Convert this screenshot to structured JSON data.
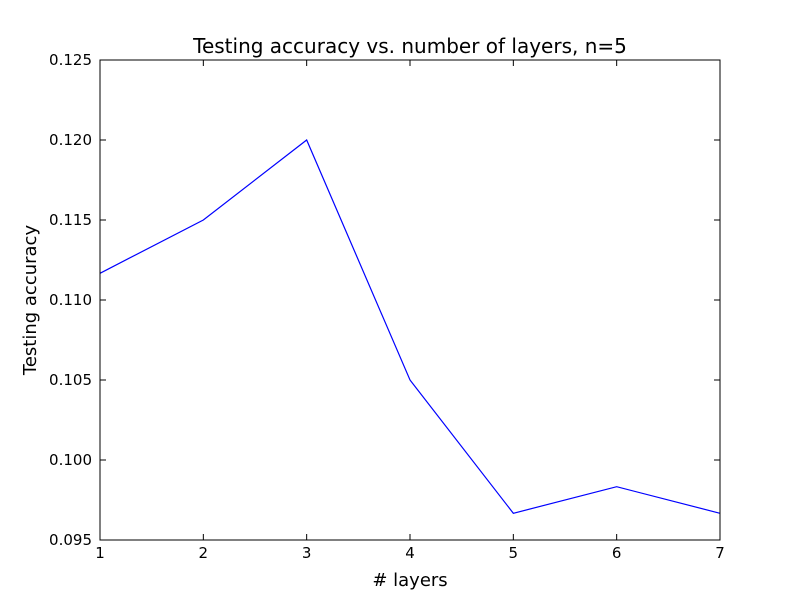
{
  "chart_data": {
    "type": "line",
    "title": "Testing accuracy vs. number of layers, n=5",
    "xlabel": "# layers",
    "ylabel": "Testing accuracy",
    "xlim": [
      1,
      7
    ],
    "ylim": [
      0.095,
      0.125
    ],
    "x_ticks": [
      "1",
      "2",
      "3",
      "4",
      "5",
      "6",
      "7"
    ],
    "y_ticks": [
      "0.095",
      "0.100",
      "0.105",
      "0.110",
      "0.115",
      "0.120",
      "0.125"
    ],
    "grid": false,
    "series": [
      {
        "color": "#0000ff",
        "x": [
          1,
          2,
          3,
          4,
          5,
          6,
          7
        ],
        "y": [
          0.11167,
          0.115,
          0.12,
          0.105,
          0.09667,
          0.09833,
          0.09667
        ]
      }
    ]
  }
}
